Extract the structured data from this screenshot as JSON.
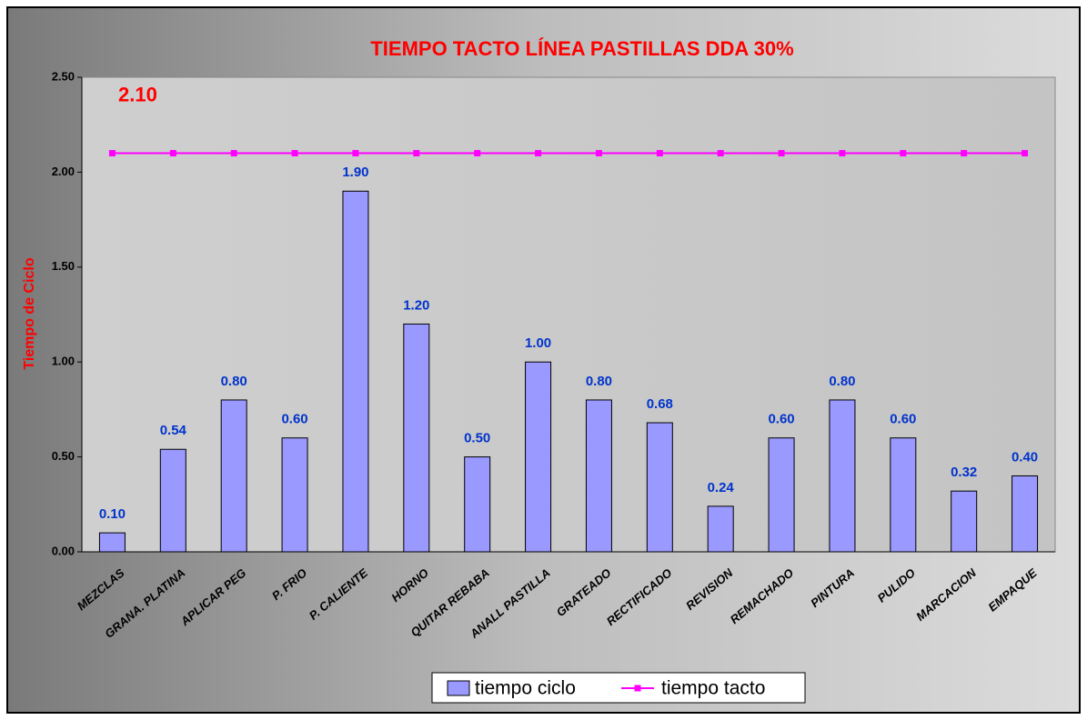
{
  "chart_data": {
    "type": "bar",
    "title": "TIEMPO TACTO LÍNEA PASTILLAS DDA 30%",
    "y_label": "Tiempo de Ciclo",
    "categories": [
      "MEZCLAS",
      "GRANA. PLATINA",
      "APLICAR PEG",
      "P. FRIO",
      "P. CALIENTE",
      "HORNO",
      "QUITAR REBABA",
      "ANALL PASTILLA",
      "GRATEADO",
      "RECTIFICADO",
      "REVISION",
      "REMACHADO",
      "PINTURA",
      "PULIDO",
      "MARCACION",
      "EMPAQUE"
    ],
    "series": [
      {
        "name": "tiempo ciclo",
        "type": "bar",
        "color": "#9999ff",
        "values": [
          0.1,
          0.54,
          0.8,
          0.6,
          1.9,
          1.2,
          0.5,
          1.0,
          0.8,
          0.68,
          0.24,
          0.6,
          0.8,
          0.6,
          0.32,
          0.4
        ],
        "value_labels": [
          "0.10",
          "0.54",
          "0.80",
          "0.60",
          "1.90",
          "1.20",
          "0.50",
          "1.00",
          "0.80",
          "0.68",
          "0.24",
          "0.60",
          "0.80",
          "0.60",
          "0.32",
          "0.40"
        ]
      },
      {
        "name": "tiempo tacto",
        "type": "line",
        "color": "#ff00ff",
        "values": [
          2.1,
          2.1,
          2.1,
          2.1,
          2.1,
          2.1,
          2.1,
          2.1,
          2.1,
          2.1,
          2.1,
          2.1,
          2.1,
          2.1,
          2.1,
          2.1
        ],
        "value_labels": [
          "2.10",
          null,
          null,
          null,
          null,
          null,
          null,
          null,
          null,
          null,
          null,
          null,
          null,
          null,
          null,
          null
        ]
      }
    ],
    "ylim": [
      0,
      2.5
    ],
    "yticks": [
      {
        "value": 0,
        "label": "0.00"
      },
      {
        "value": 0.5,
        "label": "0.50"
      },
      {
        "value": 1,
        "label": "1.00"
      },
      {
        "value": 1.5,
        "label": "1.50"
      },
      {
        "value": 2,
        "label": "2.00"
      },
      {
        "value": 2.5,
        "label": "2.50"
      }
    ],
    "grid": false
  }
}
